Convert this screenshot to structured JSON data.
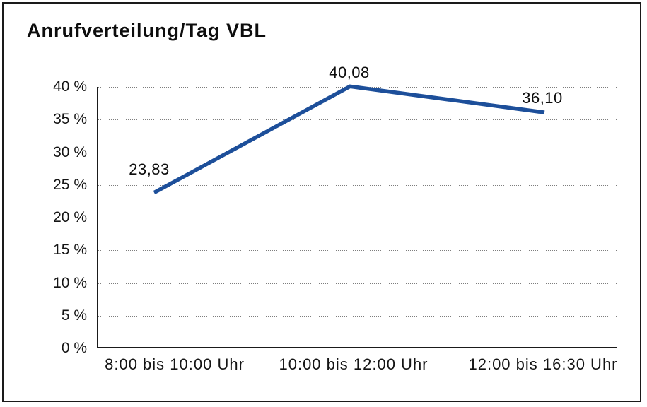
{
  "chart_data": {
    "type": "line",
    "title": "Anrufverteilung/Tag VBL",
    "categories": [
      "8:00 bis 10:00 Uhr",
      "10:00 bis 12:00 Uhr",
      "12:00 bis 16:30 Uhr"
    ],
    "values": [
      23.83,
      40.08,
      36.1
    ],
    "value_labels": [
      "23,83",
      "40,08",
      "36,10"
    ],
    "xlabel": "",
    "ylabel": "",
    "ylim": [
      0,
      40
    ],
    "ytick_step": 5,
    "ytick_labels": [
      "40 %",
      "35 %",
      "30 %",
      "25 %",
      "20 %",
      "15 %",
      "10 %",
      "5 %",
      "0 %"
    ],
    "grid": "horizontal-dotted",
    "legend": "none",
    "line_color": "#1d4f9a",
    "axis_color": "#1a1a1a",
    "text_color": "#111111"
  }
}
